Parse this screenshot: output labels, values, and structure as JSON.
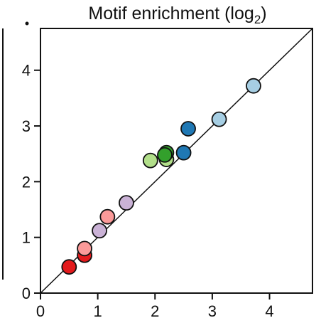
{
  "chart_data": {
    "type": "scatter",
    "title": "Motif enrichment (log",
    "title_subscript": "2",
    "title_suffix": ")",
    "xlim": [
      0,
      4.75
    ],
    "ylim": [
      0,
      4.75
    ],
    "x_ticks": [
      0,
      1,
      2,
      3,
      4
    ],
    "y_ticks": [
      0,
      1,
      2,
      3,
      4
    ],
    "x_tick_labels": [
      "0",
      "1",
      "2",
      "3",
      "4"
    ],
    "y_tick_labels": [
      "0",
      "1",
      "2",
      "3",
      "4"
    ],
    "grid": false,
    "diagonal_line": true,
    "points": [
      {
        "x": 0.5,
        "y": 0.47,
        "color": "#e31a1c"
      },
      {
        "x": 0.77,
        "y": 0.68,
        "color": "#e31a1c"
      },
      {
        "x": 0.77,
        "y": 0.8,
        "color": "#fb9a99"
      },
      {
        "x": 1.03,
        "y": 1.12,
        "color": "#cab2d6"
      },
      {
        "x": 1.17,
        "y": 1.37,
        "color": "#fb9a99"
      },
      {
        "x": 1.5,
        "y": 1.62,
        "color": "#cab2d6"
      },
      {
        "x": 1.92,
        "y": 2.38,
        "color": "#b2df8a"
      },
      {
        "x": 2.2,
        "y": 2.4,
        "color": "#b2df8a"
      },
      {
        "x": 2.2,
        "y": 2.52,
        "color": "#33a02c"
      },
      {
        "x": 2.17,
        "y": 2.48,
        "color": "#33a02c"
      },
      {
        "x": 2.5,
        "y": 2.52,
        "color": "#1f78b4"
      },
      {
        "x": 2.58,
        "y": 2.95,
        "color": "#1f78b4"
      },
      {
        "x": 3.12,
        "y": 3.12,
        "color": "#a6cee3"
      },
      {
        "x": 3.72,
        "y": 3.72,
        "color": "#a6cee3"
      }
    ]
  },
  "colors": {
    "axis": "#111111",
    "point_outline": "#111111"
  }
}
